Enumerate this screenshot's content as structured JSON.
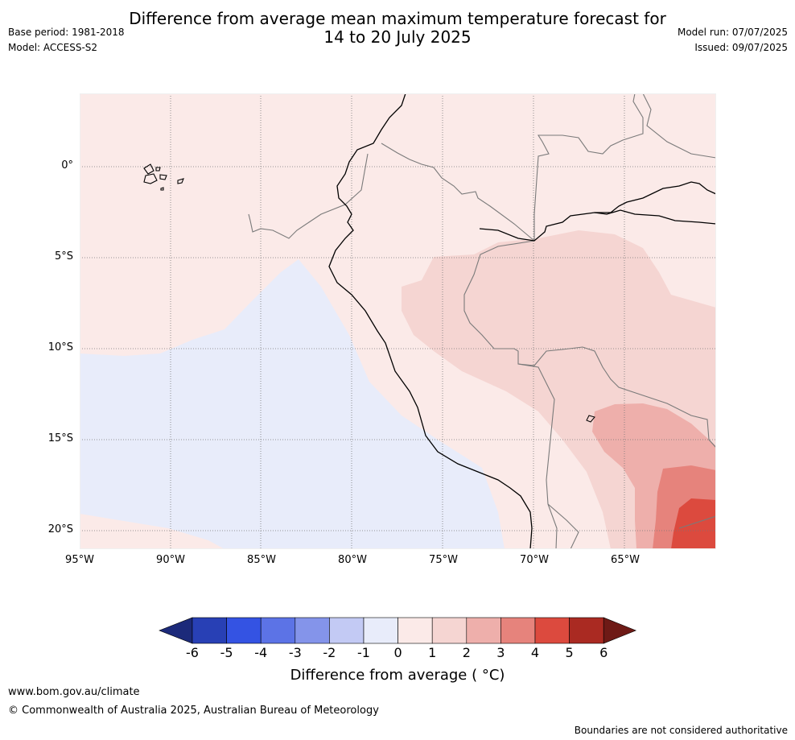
{
  "header": {
    "title_line1": "Difference from average mean maximum temperature forecast for",
    "title_line2": "14 to 20 July 2025",
    "base_period": "Base period: 1981-2018",
    "model": "Model: ACCESS-S2",
    "model_run": "Model run: 07/07/2025",
    "issued": "Issued: 09/07/2025"
  },
  "map": {
    "region": "Western South America and eastern Pacific",
    "lat_labels": [
      "0°",
      "5°S",
      "10°S",
      "15°S",
      "20°S"
    ],
    "lon_labels": [
      "95°W",
      "90°W",
      "85°W",
      "80°W",
      "75°W",
      "70°W",
      "65°W"
    ],
    "anomaly_classes": [
      {
        "range": "-1 to 0",
        "color": "#e8ecfa",
        "where": "Pacific Ocean off Peru and northern Chile"
      },
      {
        "range": "0 to 1",
        "color": "#fbeae8",
        "where": "Ecuador, Colombia, northern Peru, coastal Peru"
      },
      {
        "range": "1 to 2",
        "color": "#f5d5d2",
        "where": "eastern Peru, western Brazil, Bolivia"
      },
      {
        "range": "2 to 3",
        "color": "#eeafab",
        "where": "eastern Bolivia"
      },
      {
        "range": "3 to 4",
        "color": "#e6837c",
        "where": "south-eastern Bolivia"
      },
      {
        "range": "4 to 5",
        "color": "#dc4a3e",
        "where": "south-eastern corner"
      }
    ]
  },
  "colorbar": {
    "ticks": [
      "-6",
      "-5",
      "-4",
      "-3",
      "-2",
      "-1",
      "0",
      "1",
      "2",
      "3",
      "4",
      "5",
      "6"
    ],
    "colors": [
      "#1c2a7a",
      "#2840b5",
      "#3453e3",
      "#5c73e6",
      "#8494ea",
      "#c3caf4",
      "#e8ecfa",
      "#fbeae8",
      "#f5d5d2",
      "#eeafab",
      "#e6837c",
      "#dc4a3e",
      "#aa2a22",
      "#6e1a16"
    ],
    "title": "Difference from average ( °C)"
  },
  "footer": {
    "website": "www.bom.gov.au/climate",
    "copyright": "© Commonwealth of Australia 2025, Australian Bureau of Meteorology",
    "disclaimer": "Boundaries are not considered authoritative"
  }
}
